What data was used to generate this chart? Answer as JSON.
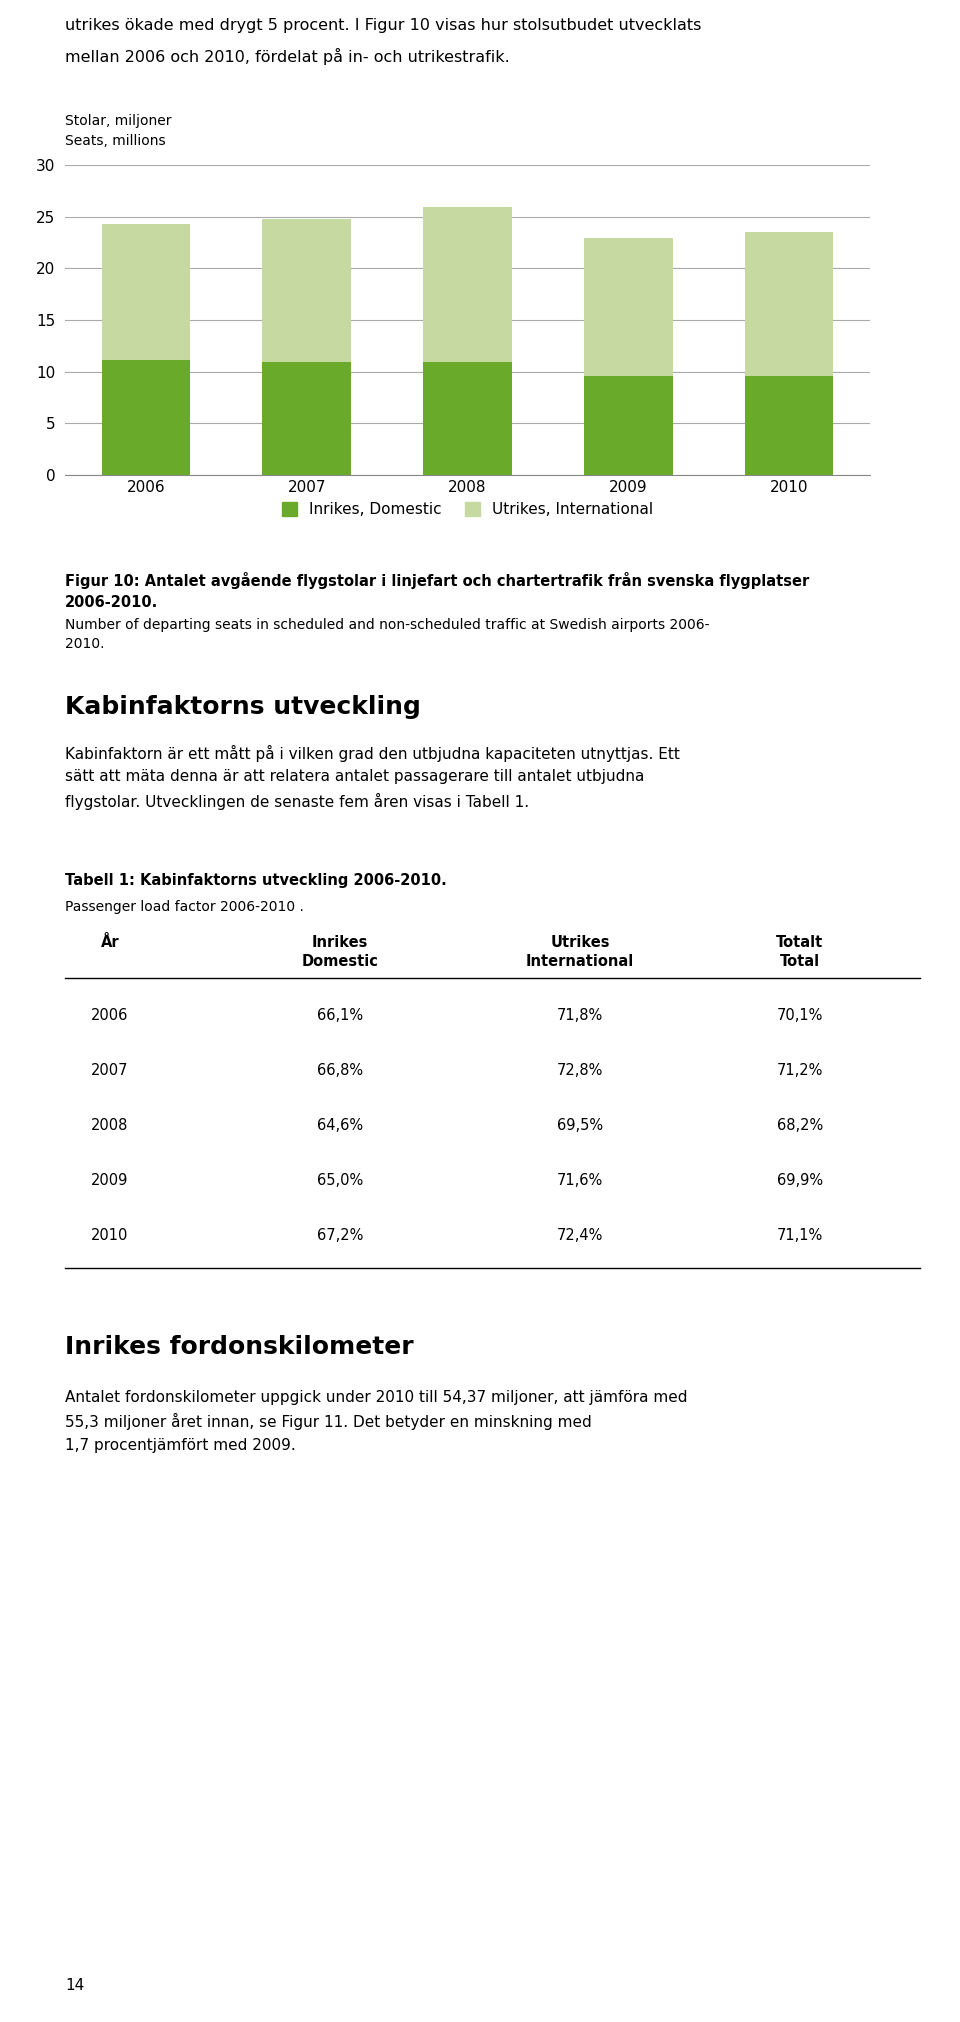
{
  "intro_line1": "utrikes ökade med drygt 5 procent. I Figur 10 visas hur stolsutbudet utvecklats",
  "intro_line2": "mellan 2006 och 2010, fördelat på in- och utrikestrafik.",
  "ylabel_line1": "Stolar, miljoner",
  "ylabel_line2": "Seats, millions",
  "years": [
    "2006",
    "2007",
    "2008",
    "2009",
    "2010"
  ],
  "domestic": [
    11.1,
    10.9,
    10.9,
    9.6,
    9.6
  ],
  "international": [
    13.2,
    13.9,
    15.0,
    13.3,
    13.9
  ],
  "color_domestic": "#6aaa2a",
  "color_international": "#c5d9a0",
  "ylim": [
    0,
    30
  ],
  "yticks": [
    0,
    5,
    10,
    15,
    20,
    25,
    30
  ],
  "legend_domestic": "Inrikes, Domestic",
  "legend_international": "Utrikes, International",
  "fig_caption_bold": "Figur 10: Antalet avgående flygstolar i linjefart och chartertrafik från svenska flygplatser\n2006-2010.",
  "fig_caption_normal": "Number of departing seats in scheduled and non-scheduled traffic at Swedish airports 2006-\n2010.",
  "section_title": "Kabinfaktorns utveckling",
  "section_body": "Kabinfaktorn är ett mått på i vilken grad den utbjudna kapaciteten utnyttjas. Ett\nsätt att mäta denna är att relatera antalet passagerare till antalet utbjudna\nflygstolar. Utvecklingen de senaste fem åren visas i Tabell 1.",
  "table_title_bold": "Tabell 1: Kabinfaktorns utveckling 2006-2010.",
  "table_title_normal": "Passenger load factor 2006-2010 .",
  "table_headers": [
    "År",
    "Inrikes\nDomestic",
    "Utrikes\nInternational",
    "Totalt\nTotal"
  ],
  "table_years": [
    "2006",
    "2007",
    "2008",
    "2009",
    "2010"
  ],
  "table_domestic": [
    "66,1%",
    "66,8%",
    "64,6%",
    "65,0%",
    "67,2%"
  ],
  "table_international": [
    "71,8%",
    "72,8%",
    "69,5%",
    "71,6%",
    "72,4%"
  ],
  "table_total": [
    "70,1%",
    "71,2%",
    "68,2%",
    "69,9%",
    "71,1%"
  ],
  "footer_title": "Inrikes fordonskilometer",
  "footer_body": "Antalet fordonskilometer uppgick under 2010 till 54,37 miljoner, att jämföra med\n55,3 miljoner året innan, se Figur 11. Det betyder en minskning med\n1,7 procentjämfört med 2009.",
  "page_number": "14"
}
